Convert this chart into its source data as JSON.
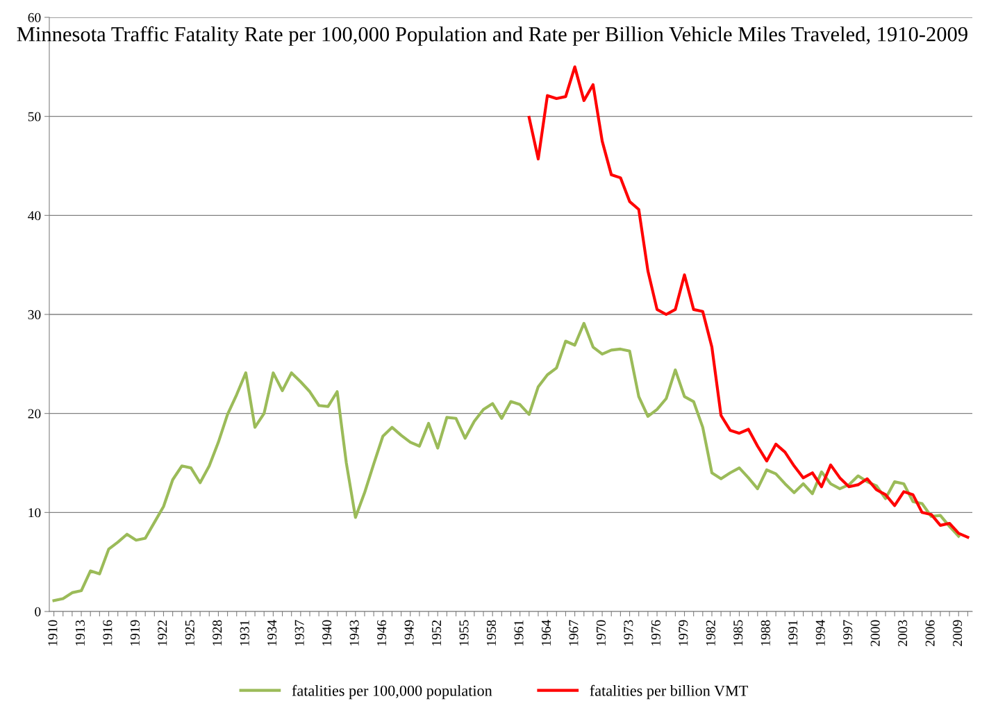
{
  "chart_data": {
    "type": "line",
    "title": "Minnesota Traffic Fatality Rate per 100,000 Population and Rate per Billion Vehicle Miles Traveled, 1910-2009",
    "categories": [
      "1910",
      null,
      null,
      "1913",
      null,
      null,
      "1916",
      null,
      null,
      "1919",
      null,
      null,
      "1922",
      null,
      null,
      "1925",
      null,
      null,
      "1928",
      null,
      null,
      "1931",
      null,
      null,
      "1934",
      null,
      null,
      "1937",
      null,
      null,
      "1940",
      null,
      null,
      "1943",
      null,
      null,
      "1946",
      null,
      null,
      "1949",
      null,
      null,
      "1952",
      null,
      null,
      "1955",
      null,
      null,
      "1958",
      null,
      null,
      "1961",
      null,
      null,
      "1964",
      null,
      null,
      "1967",
      null,
      null,
      "1970",
      null,
      null,
      "1973",
      null,
      null,
      "1976",
      null,
      null,
      "1979",
      null,
      null,
      "1982",
      null,
      null,
      "1985",
      null,
      null,
      "1988",
      null,
      null,
      "1991",
      null,
      null,
      "1994",
      null,
      null,
      "1997",
      null,
      null,
      "2000",
      null,
      null,
      "2003",
      null,
      null,
      "2006",
      null,
      null,
      "2009",
      null
    ],
    "series": [
      {
        "name": "fatalities per 100,000 population",
        "color": "#9bbb59",
        "values": [
          1.1,
          1.3,
          1.9,
          2.1,
          4.1,
          3.8,
          6.3,
          7.0,
          7.8,
          7.2,
          7.4,
          9.0,
          10.6,
          13.3,
          14.7,
          14.5,
          13.0,
          14.7,
          17.1,
          19.9,
          21.9,
          24.1,
          18.6,
          20.0,
          24.1,
          22.3,
          24.1,
          23.2,
          22.2,
          20.8,
          20.7,
          22.2,
          15.0,
          9.5,
          12.0,
          14.9,
          17.7,
          18.6,
          17.8,
          17.1,
          16.7,
          19.0,
          16.5,
          19.6,
          19.5,
          17.5,
          19.2,
          20.4,
          21.0,
          19.5,
          21.2,
          20.9,
          19.9,
          22.7,
          23.9,
          24.6,
          27.3,
          26.9,
          29.1,
          26.7,
          26.0,
          26.4,
          26.5,
          26.3,
          21.7,
          19.7,
          20.4,
          21.5,
          24.4,
          21.7,
          21.2,
          18.6,
          14.0,
          13.4,
          14.0,
          14.5,
          13.5,
          12.4,
          14.3,
          13.9,
          12.9,
          12.0,
          12.9,
          11.9,
          14.1,
          12.9,
          12.4,
          12.8,
          13.7,
          13.1,
          12.7,
          11.4,
          13.1,
          12.9,
          11.1,
          10.9,
          9.6,
          9.7,
          8.6,
          7.6,
          null
        ]
      },
      {
        "name": "fatalities per billion VMT",
        "color": "#ff0000",
        "values": [
          null,
          null,
          null,
          null,
          null,
          null,
          null,
          null,
          null,
          null,
          null,
          null,
          null,
          null,
          null,
          null,
          null,
          null,
          null,
          null,
          null,
          null,
          null,
          null,
          null,
          null,
          null,
          null,
          null,
          null,
          null,
          null,
          null,
          null,
          null,
          null,
          null,
          null,
          null,
          null,
          null,
          null,
          null,
          null,
          null,
          null,
          null,
          null,
          null,
          null,
          null,
          null,
          49.9,
          45.7,
          52.1,
          51.8,
          52.0,
          55.0,
          51.6,
          53.2,
          47.5,
          44.1,
          43.8,
          41.4,
          40.6,
          34.4,
          30.5,
          30.0,
          30.5,
          34.0,
          30.5,
          30.3,
          26.7,
          19.8,
          18.3,
          18.0,
          18.4,
          16.7,
          15.2,
          16.9,
          16.1,
          14.7,
          13.5,
          14.0,
          12.6,
          14.8,
          13.5,
          12.6,
          12.8,
          13.4,
          12.3,
          11.8,
          10.7,
          12.1,
          11.8,
          10.0,
          9.8,
          8.7,
          8.9,
          7.9,
          7.5
        ]
      }
    ],
    "ylim": [
      0,
      60
    ],
    "yticks": [
      0,
      10,
      20,
      30,
      40,
      50,
      60
    ],
    "grid": "y",
    "legend": "bottom",
    "marker": "none",
    "line_style": "solid"
  }
}
